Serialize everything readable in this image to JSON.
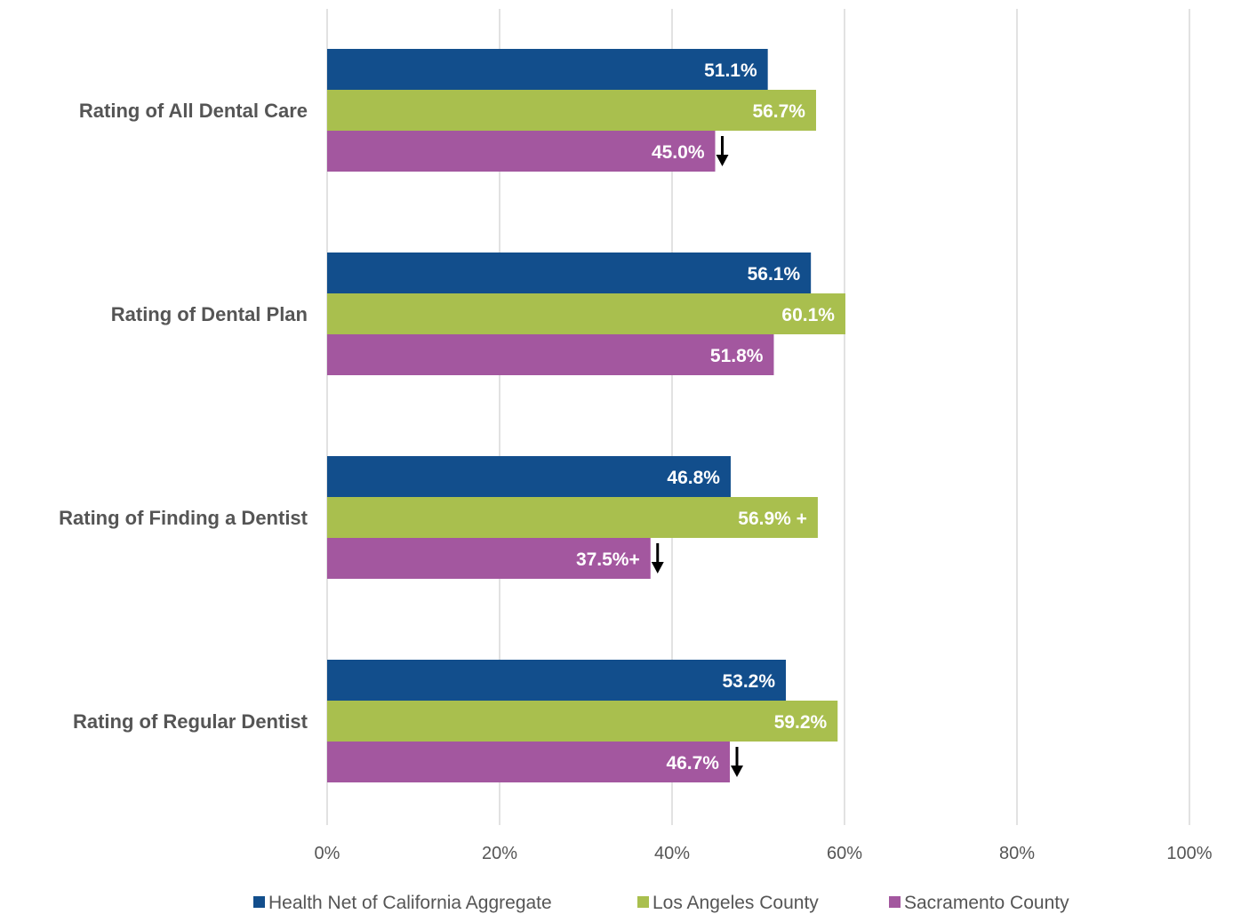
{
  "chart_data": {
    "type": "bar",
    "orientation": "horizontal",
    "categories": [
      "Rating of All Dental Care",
      "Rating of Dental Plan",
      "Rating of Finding a Dentist",
      "Rating of Regular Dentist"
    ],
    "series": [
      {
        "name": "Health Net of California Aggregate",
        "color": "#124e8c",
        "values": [
          51.1,
          56.1,
          46.8,
          53.2
        ],
        "labels": [
          "51.1%",
          "56.1%",
          "46.8%",
          "53.2%"
        ],
        "markers": [
          "",
          "",
          "",
          ""
        ]
      },
      {
        "name": "Los Angeles County",
        "color": "#a9bf4e",
        "values": [
          56.7,
          60.1,
          56.9,
          59.2
        ],
        "labels": [
          "56.7%",
          "60.1%",
          "56.9% +",
          "59.2%"
        ],
        "markers": [
          "",
          "",
          "",
          ""
        ]
      },
      {
        "name": "Sacramento County",
        "color": "#a3579f",
        "values": [
          45.0,
          51.8,
          37.5,
          46.7
        ],
        "labels": [
          "45.0%",
          "51.8%",
          "37.5%+",
          "46.7%"
        ],
        "markers": [
          "down-arrow",
          "",
          "down-arrow",
          "down-arrow"
        ]
      }
    ],
    "x_ticks": [
      "0%",
      "20%",
      "40%",
      "60%",
      "80%",
      "100%"
    ],
    "xlim": [
      0,
      100
    ],
    "grid": true,
    "legend_position": "bottom"
  }
}
